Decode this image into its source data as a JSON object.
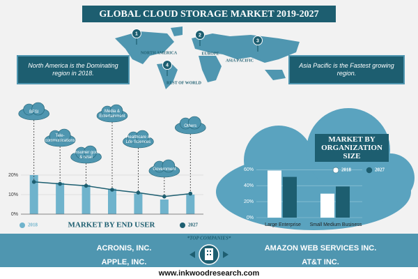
{
  "title": "GLOBAL CLOUD STORAGE MARKET 2019-2027",
  "markers": [
    {
      "number": 1,
      "label": "NORTH AMERICA"
    },
    {
      "number": 2,
      "label": "EUROPE"
    },
    {
      "number": 3,
      "label": "ASIA PACIFIC"
    },
    {
      "number": 4,
      "label": "REST OF WORLD"
    }
  ],
  "info": {
    "left": "North America is the Dominating region in 2018.",
    "right": "Asia Pacific is the Fastest growing region."
  },
  "chart_data": [
    {
      "type": "bar",
      "title": "MARKET BY END USER",
      "categories": [
        "BFSI",
        "Tele-communications",
        "Consumer goods & retail",
        "Media & Entertainment",
        "Healthcare & Life Sciences",
        "Government",
        "Others"
      ],
      "series": [
        {
          "name": "2018",
          "color": "#6fb3cc",
          "values": [
            20,
            16,
            15,
            13,
            10.5,
            7.5,
            10
          ]
        },
        {
          "name": "2027",
          "color": "#1d5e70",
          "type": "line",
          "values": [
            16.5,
            15.5,
            14.5,
            12.5,
            11,
            9,
            10.5
          ]
        }
      ],
      "ylim": [
        0,
        20
      ],
      "yticks": [
        {
          "value": 0,
          "label": "0%"
        },
        {
          "value": 10,
          "label": "10%"
        },
        {
          "value": 20,
          "label": "20%"
        }
      ],
      "grid": true
    },
    {
      "type": "bar",
      "title": "MARKET BY ORGANIZATION SIZE",
      "categories": [
        "Large Enterprise",
        "Small Medium Business"
      ],
      "series": [
        {
          "name": "2018",
          "color": "#ffffff",
          "values": [
            59,
            30
          ]
        },
        {
          "name": "2027",
          "color": "#1d5e70",
          "values": [
            51,
            39
          ]
        }
      ],
      "ylim": [
        0,
        62
      ],
      "yticks": [
        {
          "value": 0,
          "label": "0%"
        },
        {
          "value": 20,
          "label": "20%"
        },
        {
          "value": 40,
          "label": "40%"
        },
        {
          "value": 60,
          "label": "60%"
        }
      ],
      "grid": true
    }
  ],
  "companies": {
    "heading": "*TOP COMPANIES*",
    "left": [
      "ACRONIS, INC.",
      "APPLE, INC."
    ],
    "right": [
      "AMAZON WEB SERVICES INC.",
      "AT&T INC."
    ]
  },
  "footer": "www.inkwoodresearch.com"
}
